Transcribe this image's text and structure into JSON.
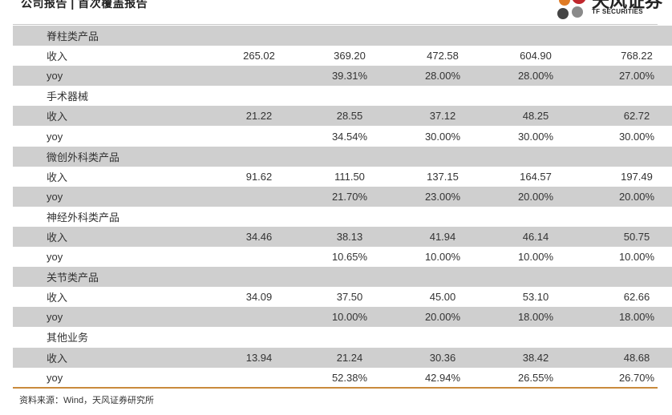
{
  "header": {
    "title": "公司报告 | 首次覆盖报告",
    "logo_cn": "天风证券",
    "logo_en": "TF SECURITIES",
    "logo_colors": [
      "#c0272d",
      "#e07b24",
      "#444444",
      "#8a8a8a"
    ]
  },
  "rows": [
    {
      "label": "脊柱类产品",
      "values": [
        "",
        "",
        "",
        "",
        ""
      ],
      "shade": true
    },
    {
      "label": "收入",
      "values": [
        "265.02",
        "369.20",
        "472.58",
        "604.90",
        "768.22"
      ],
      "shade": false
    },
    {
      "label": "yoy",
      "values": [
        "",
        "39.31%",
        "28.00%",
        "28.00%",
        "27.00%"
      ],
      "shade": true
    },
    {
      "label": "手术器械",
      "values": [
        "",
        "",
        "",
        "",
        ""
      ],
      "shade": false
    },
    {
      "label": "收入",
      "values": [
        "21.22",
        "28.55",
        "37.12",
        "48.25",
        "62.72"
      ],
      "shade": true
    },
    {
      "label": "yoy",
      "values": [
        "",
        "34.54%",
        "30.00%",
        "30.00%",
        "30.00%"
      ],
      "shade": false
    },
    {
      "label": "微创外科类产品",
      "values": [
        "",
        "",
        "",
        "",
        ""
      ],
      "shade": true
    },
    {
      "label": "收入",
      "values": [
        "91.62",
        "111.50",
        "137.15",
        "164.57",
        "197.49"
      ],
      "shade": false
    },
    {
      "label": "yoy",
      "values": [
        "",
        "21.70%",
        "23.00%",
        "20.00%",
        "20.00%"
      ],
      "shade": true
    },
    {
      "label": "神经外科类产品",
      "values": [
        "",
        "",
        "",
        "",
        ""
      ],
      "shade": false
    },
    {
      "label": "收入",
      "values": [
        "34.46",
        "38.13",
        "41.94",
        "46.14",
        "50.75"
      ],
      "shade": true
    },
    {
      "label": "yoy",
      "values": [
        "",
        "10.65%",
        "10.00%",
        "10.00%",
        "10.00%"
      ],
      "shade": false
    },
    {
      "label": "关节类产品",
      "values": [
        "",
        "",
        "",
        "",
        ""
      ],
      "shade": true
    },
    {
      "label": "收入",
      "values": [
        "34.09",
        "37.50",
        "45.00",
        "53.10",
        "62.66"
      ],
      "shade": false
    },
    {
      "label": "yoy",
      "values": [
        "",
        "10.00%",
        "20.00%",
        "18.00%",
        "18.00%"
      ],
      "shade": true
    },
    {
      "label": "其他业务",
      "values": [
        "",
        "",
        "",
        "",
        ""
      ],
      "shade": false
    },
    {
      "label": "收入",
      "values": [
        "13.94",
        "21.24",
        "30.36",
        "38.42",
        "48.68"
      ],
      "shade": true
    },
    {
      "label": "yoy",
      "values": [
        "",
        "52.38%",
        "42.94%",
        "26.55%",
        "26.70%"
      ],
      "shade": false
    }
  ],
  "source": "资料来源：Wind，天风证券研究所"
}
